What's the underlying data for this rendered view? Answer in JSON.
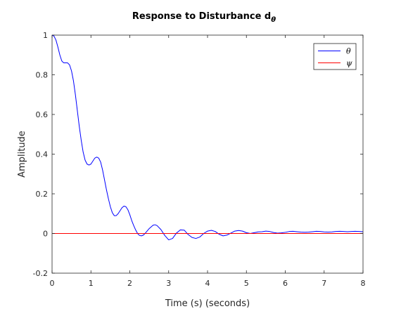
{
  "chart_data": {
    "type": "line",
    "title": "Response to Disturbance d",
    "title_subscript": "θ",
    "xlabel": "Time (s) (seconds)",
    "ylabel": "Amplitude",
    "xlim": [
      0,
      8
    ],
    "ylim": [
      -0.2,
      1
    ],
    "xticks": [
      0,
      1,
      2,
      3,
      4,
      5,
      6,
      7,
      8
    ],
    "xtick_labels": [
      "0",
      "1",
      "2",
      "3",
      "4",
      "5",
      "6",
      "7",
      "8"
    ],
    "yticks": [
      -0.2,
      0,
      0.2,
      0.4,
      0.6,
      0.8,
      1
    ],
    "ytick_labels": [
      "-0.2",
      "0",
      "0.2",
      "0.4",
      "0.6",
      "0.8",
      "1"
    ],
    "grid": false,
    "legend_position": "top-right",
    "series": [
      {
        "name": "θ",
        "color": "#0000ff",
        "x": [
          0,
          0.05,
          0.1,
          0.15,
          0.2,
          0.25,
          0.3,
          0.35,
          0.4,
          0.45,
          0.5,
          0.55,
          0.6,
          0.65,
          0.7,
          0.75,
          0.8,
          0.85,
          0.9,
          0.95,
          1.0,
          1.05,
          1.1,
          1.15,
          1.2,
          1.25,
          1.3,
          1.35,
          1.4,
          1.45,
          1.5,
          1.55,
          1.6,
          1.65,
          1.7,
          1.75,
          1.8,
          1.85,
          1.9,
          1.95,
          2.0,
          2.05,
          2.1,
          2.15,
          2.2,
          2.25,
          2.3,
          2.35,
          2.4,
          2.5,
          2.6,
          2.65,
          2.7,
          2.8,
          2.9,
          3.0,
          3.1,
          3.2,
          3.3,
          3.4,
          3.5,
          3.6,
          3.7,
          3.8,
          3.9,
          4.0,
          4.1,
          4.2,
          4.3,
          4.4,
          4.5,
          4.6,
          4.7,
          4.8,
          4.9,
          5.0,
          5.1,
          5.2,
          5.3,
          5.4,
          5.5,
          5.6,
          5.7,
          5.8,
          5.9,
          6.0,
          6.1,
          6.2,
          6.3,
          6.4,
          6.5,
          6.6,
          6.7,
          6.8,
          6.9,
          7.0,
          7.1,
          7.2,
          7.3,
          7.4,
          7.5,
          7.6,
          7.7,
          7.8,
          7.9,
          8.0
        ],
        "y": [
          1.0,
          0.995,
          0.975,
          0.94,
          0.9,
          0.87,
          0.86,
          0.86,
          0.86,
          0.85,
          0.82,
          0.77,
          0.7,
          0.62,
          0.54,
          0.47,
          0.41,
          0.37,
          0.35,
          0.345,
          0.35,
          0.365,
          0.38,
          0.385,
          0.38,
          0.36,
          0.32,
          0.27,
          0.22,
          0.175,
          0.135,
          0.105,
          0.09,
          0.09,
          0.1,
          0.115,
          0.13,
          0.138,
          0.135,
          0.12,
          0.095,
          0.065,
          0.04,
          0.018,
          0.0,
          -0.01,
          -0.012,
          -0.008,
          0.002,
          0.025,
          0.042,
          0.044,
          0.04,
          0.02,
          -0.01,
          -0.032,
          -0.025,
          0.002,
          0.018,
          0.017,
          -0.005,
          -0.02,
          -0.025,
          -0.018,
          0.0,
          0.012,
          0.016,
          0.01,
          -0.004,
          -0.012,
          -0.008,
          0.002,
          0.012,
          0.015,
          0.012,
          0.004,
          0.0,
          0.004,
          0.008,
          0.009,
          0.012,
          0.01,
          0.005,
          0.002,
          0.003,
          0.006,
          0.01,
          0.011,
          0.009,
          0.007,
          0.006,
          0.007,
          0.009,
          0.011,
          0.01,
          0.008,
          0.007,
          0.008,
          0.01,
          0.011,
          0.01,
          0.009,
          0.01,
          0.011,
          0.01,
          0.009
        ]
      },
      {
        "name": "ψ",
        "color": "#ff0000",
        "x": [
          0,
          8
        ],
        "y": [
          0,
          0
        ]
      }
    ]
  }
}
